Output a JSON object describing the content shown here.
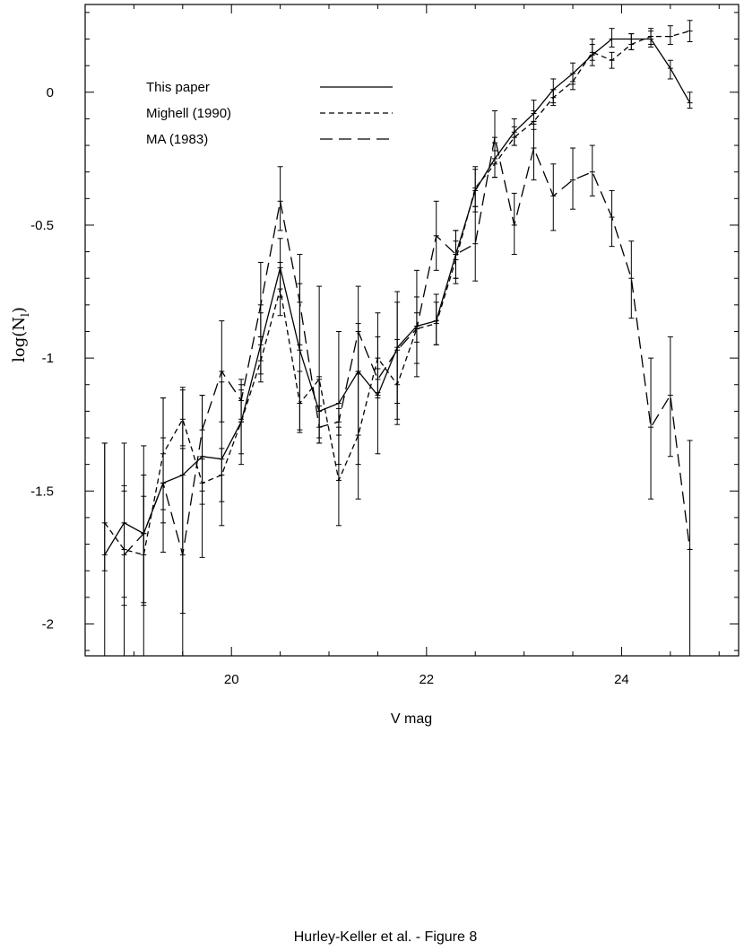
{
  "caption": "Hurley-Keller et al. - Figure 8",
  "chart_data": {
    "type": "line",
    "xlabel": "V mag",
    "ylabel_main": "log(N",
    "ylabel_sub": "l",
    "ylabel_close": ")",
    "xlim": [
      18.5,
      25.2
    ],
    "ylim": [
      -2.12,
      0.33
    ],
    "x_ticks": [
      {
        "v": 20,
        "label": "20"
      },
      {
        "v": 22,
        "label": "22"
      },
      {
        "v": 24,
        "label": "24"
      }
    ],
    "y_ticks": [
      {
        "v": 0,
        "label": "0"
      },
      {
        "v": -0.5,
        "label": "-0.5"
      },
      {
        "v": -1,
        "label": "-1"
      },
      {
        "v": -1.5,
        "label": "-1.5"
      },
      {
        "v": -2,
        "label": "-2"
      }
    ],
    "legend_placement": "upper-left",
    "series": [
      {
        "name": "This paper",
        "dash": "solid",
        "points": [
          {
            "x": 18.7,
            "y": -1.74,
            "lo": -2.12,
            "hi": -1.32
          },
          {
            "x": 18.9,
            "y": -1.62,
            "lo": -2.12,
            "hi": -1.32
          },
          {
            "x": 19.1,
            "y": -1.66,
            "lo": -2.12,
            "hi": -1.33
          },
          {
            "x": 19.3,
            "y": -1.47,
            "lo": -1.73,
            "hi": -1.15
          },
          {
            "x": 19.5,
            "y": -1.44,
            "lo": -2.12,
            "hi": -1.11
          },
          {
            "x": 19.7,
            "y": -1.37,
            "lo": -1.75,
            "hi": -1.14
          },
          {
            "x": 19.9,
            "y": -1.38,
            "lo": -1.63,
            "hi": -1.09
          },
          {
            "x": 20.1,
            "y": -1.24,
            "lo": -1.36,
            "hi": -1.12
          },
          {
            "x": 20.3,
            "y": -0.95,
            "lo": -1.06,
            "hi": -0.83
          },
          {
            "x": 20.5,
            "y": -0.66,
            "lo": -0.77,
            "hi": -0.55
          },
          {
            "x": 20.7,
            "y": -0.97,
            "lo": -1.28,
            "hi": -0.72
          },
          {
            "x": 20.9,
            "y": -1.2,
            "lo": -1.3,
            "hi": -1.07
          },
          {
            "x": 21.1,
            "y": -1.17,
            "lo": -1.4,
            "hi": -0.9
          },
          {
            "x": 21.3,
            "y": -1.05,
            "lo": -1.4,
            "hi": -0.87
          },
          {
            "x": 21.5,
            "y": -1.14,
            "lo": -1.36,
            "hi": -0.92
          },
          {
            "x": 21.7,
            "y": -0.96,
            "lo": -1.23,
            "hi": -0.79
          },
          {
            "x": 21.9,
            "y": -0.88,
            "lo": -1.07,
            "hi": -0.67
          },
          {
            "x": 22.1,
            "y": -0.86,
            "lo": -0.95,
            "hi": -0.76
          },
          {
            "x": 22.3,
            "y": -0.61,
            "lo": -0.7,
            "hi": -0.52
          },
          {
            "x": 22.5,
            "y": -0.37,
            "lo": -0.45,
            "hi": -0.28
          },
          {
            "x": 22.7,
            "y": -0.25,
            "lo": -0.32,
            "hi": -0.19
          },
          {
            "x": 22.9,
            "y": -0.15,
            "lo": -0.2,
            "hi": -0.1
          },
          {
            "x": 23.1,
            "y": -0.08,
            "lo": -0.12,
            "hi": -0.03
          },
          {
            "x": 23.3,
            "y": 0.01,
            "lo": -0.04,
            "hi": 0.05
          },
          {
            "x": 23.5,
            "y": 0.07,
            "lo": 0.03,
            "hi": 0.11
          },
          {
            "x": 23.7,
            "y": 0.14,
            "lo": 0.1,
            "hi": 0.2
          },
          {
            "x": 23.9,
            "y": 0.2,
            "lo": 0.17,
            "hi": 0.24
          },
          {
            "x": 24.1,
            "y": 0.2,
            "lo": 0.16,
            "hi": 0.22
          },
          {
            "x": 24.3,
            "y": 0.2,
            "lo": 0.17,
            "hi": 0.23
          },
          {
            "x": 24.5,
            "y": 0.09,
            "lo": 0.05,
            "hi": 0.12
          },
          {
            "x": 24.7,
            "y": -0.04,
            "lo": -0.06,
            "hi": 0
          }
        ]
      },
      {
        "name": "Mighell (1990)",
        "dash": "6,4",
        "points": [
          {
            "x": 18.7,
            "y": -1.62,
            "lo": -1.8,
            "hi": -1.32
          },
          {
            "x": 18.9,
            "y": -1.72,
            "lo": -1.93,
            "hi": -1.48
          },
          {
            "x": 19.1,
            "y": -1.74,
            "lo": -1.93,
            "hi": -1.52
          },
          {
            "x": 19.3,
            "y": -1.36,
            "lo": -1.57,
            "hi": -1.15
          },
          {
            "x": 19.5,
            "y": -1.23,
            "lo": -1.33,
            "hi": -1.12
          },
          {
            "x": 19.7,
            "y": -1.47,
            "lo": -1.55,
            "hi": -1.38
          },
          {
            "x": 19.9,
            "y": -1.44,
            "lo": -1.54,
            "hi": -1.34
          },
          {
            "x": 20.1,
            "y": -1.24,
            "lo": -1.4,
            "hi": -1.1
          },
          {
            "x": 20.3,
            "y": -1.01,
            "lo": -1.09,
            "hi": -0.92
          },
          {
            "x": 20.5,
            "y": -0.74,
            "lo": -0.84,
            "hi": -0.64
          },
          {
            "x": 20.7,
            "y": -1.17,
            "lo": -1.27,
            "hi": -1.05
          },
          {
            "x": 20.9,
            "y": -1.08,
            "lo": -1.32,
            "hi": -0.73
          },
          {
            "x": 21.1,
            "y": -1.46,
            "lo": -1.63,
            "hi": -1.26
          },
          {
            "x": 21.3,
            "y": -1.29,
            "lo": -1.53,
            "hi": -1.05
          },
          {
            "x": 21.5,
            "y": -1.0,
            "lo": -1.15,
            "hi": -0.83
          },
          {
            "x": 21.7,
            "y": -1.1,
            "lo": -1.25,
            "hi": -0.93
          },
          {
            "x": 21.9,
            "y": -0.89,
            "lo": -1.02,
            "hi": -0.77
          },
          {
            "x": 22.1,
            "y": -0.87,
            "lo": -0.95,
            "hi": -0.79
          },
          {
            "x": 22.3,
            "y": -0.63,
            "lo": -0.72,
            "hi": -0.56
          },
          {
            "x": 22.5,
            "y": -0.36,
            "lo": -0.43,
            "hi": -0.29
          },
          {
            "x": 22.7,
            "y": -0.27,
            "lo": -0.32,
            "hi": -0.22
          },
          {
            "x": 22.9,
            "y": -0.17,
            "lo": -0.2,
            "hi": -0.13
          },
          {
            "x": 23.1,
            "y": -0.11,
            "lo": -0.14,
            "hi": -0.07
          },
          {
            "x": 23.3,
            "y": -0.02,
            "lo": -0.05,
            "hi": 0.01
          },
          {
            "x": 23.5,
            "y": 0.04,
            "lo": 0.01,
            "hi": 0.07
          },
          {
            "x": 23.7,
            "y": 0.15,
            "lo": 0.12,
            "hi": 0.18
          },
          {
            "x": 23.9,
            "y": 0.12,
            "lo": 0.09,
            "hi": 0.15
          },
          {
            "x": 24.1,
            "y": 0.18,
            "lo": 0.16,
            "hi": 0.22
          },
          {
            "x": 24.3,
            "y": 0.21,
            "lo": 0.18,
            "hi": 0.24
          },
          {
            "x": 24.5,
            "y": 0.21,
            "lo": 0.18,
            "hi": 0.25
          },
          {
            "x": 24.7,
            "y": 0.23,
            "lo": 0.19,
            "hi": 0.27
          }
        ]
      },
      {
        "name": "MA (1983)",
        "dash": "14,7",
        "points": [
          {
            "x": 18.9,
            "y": -1.74,
            "lo": -1.9,
            "hi": -1.5
          },
          {
            "x": 19.1,
            "y": -1.66,
            "lo": -1.92,
            "hi": -1.44
          },
          {
            "x": 19.3,
            "y": -1.47,
            "lo": -1.62,
            "hi": -1.3
          },
          {
            "x": 19.5,
            "y": -1.74,
            "lo": -1.96,
            "hi": -1.34
          },
          {
            "x": 19.7,
            "y": -1.27,
            "lo": -1.5,
            "hi": -1.14
          },
          {
            "x": 19.9,
            "y": -1.05,
            "lo": -1.24,
            "hi": -0.86
          },
          {
            "x": 20.1,
            "y": -1.16,
            "lo": -1.23,
            "hi": -1.08
          },
          {
            "x": 20.3,
            "y": -0.8,
            "lo": -0.92,
            "hi": -0.64
          },
          {
            "x": 20.5,
            "y": -0.41,
            "lo": -0.52,
            "hi": -0.28
          },
          {
            "x": 20.7,
            "y": -0.79,
            "lo": -0.95,
            "hi": -0.61
          },
          {
            "x": 20.9,
            "y": -1.26,
            "lo": -1.32,
            "hi": -1.18
          },
          {
            "x": 21.1,
            "y": -1.24,
            "lo": -1.29,
            "hi": -1.19
          },
          {
            "x": 21.3,
            "y": -0.9,
            "lo": -1.06,
            "hi": -0.73
          },
          {
            "x": 21.5,
            "y": -1.08,
            "lo": -1.13,
            "hi": -1.04
          },
          {
            "x": 21.7,
            "y": -0.97,
            "lo": -1.17,
            "hi": -0.75
          },
          {
            "x": 21.9,
            "y": -0.89,
            "lo": -0.94,
            "hi": -0.83
          },
          {
            "x": 22.1,
            "y": -0.54,
            "lo": -0.67,
            "hi": -0.41
          },
          {
            "x": 22.3,
            "y": -0.61,
            "lo": -0.7,
            "hi": -0.52
          },
          {
            "x": 22.5,
            "y": -0.57,
            "lo": -0.71,
            "hi": -0.43
          },
          {
            "x": 22.7,
            "y": -0.17,
            "lo": -0.32,
            "hi": -0.07
          },
          {
            "x": 22.9,
            "y": -0.5,
            "lo": -0.61,
            "hi": -0.38
          },
          {
            "x": 23.1,
            "y": -0.21,
            "lo": -0.33,
            "hi": -0.11
          },
          {
            "x": 23.3,
            "y": -0.39,
            "lo": -0.52,
            "hi": -0.27
          },
          {
            "x": 23.5,
            "y": -0.33,
            "lo": -0.44,
            "hi": -0.21
          },
          {
            "x": 23.7,
            "y": -0.3,
            "lo": -0.39,
            "hi": -0.2
          },
          {
            "x": 23.9,
            "y": -0.47,
            "lo": -0.58,
            "hi": -0.37
          },
          {
            "x": 24.1,
            "y": -0.7,
            "lo": -0.85,
            "hi": -0.56
          },
          {
            "x": 24.3,
            "y": -1.26,
            "lo": -1.53,
            "hi": -1.0
          },
          {
            "x": 24.5,
            "y": -1.14,
            "lo": -1.37,
            "hi": -0.92
          },
          {
            "x": 24.7,
            "y": -1.72,
            "lo": -2.12,
            "hi": -1.31
          }
        ]
      }
    ]
  }
}
